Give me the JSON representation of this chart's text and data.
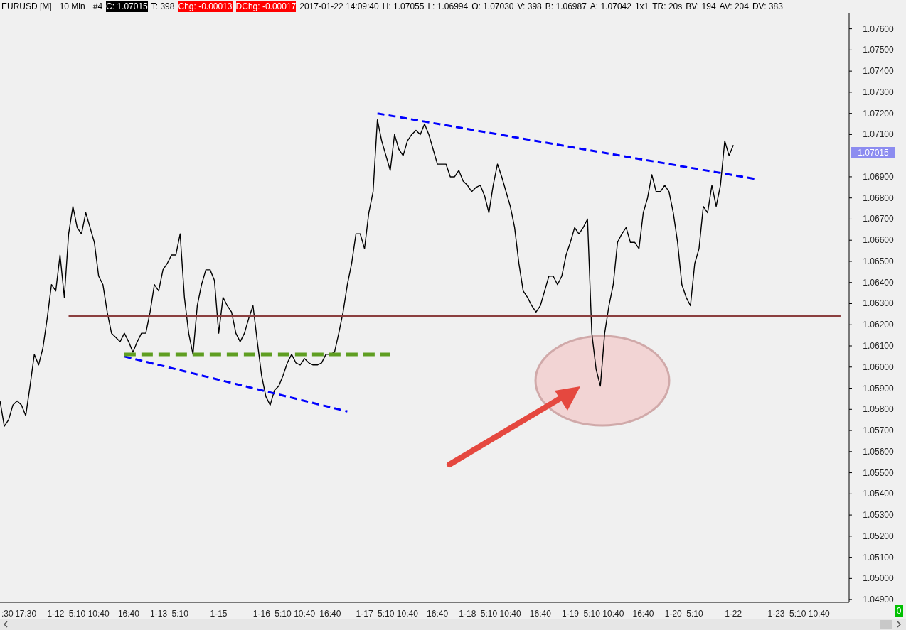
{
  "chart_data": {
    "type": "line",
    "annotations": [
      "EURUSD [M]",
      "10 Min",
      "#4",
      "C: 1.07015",
      "T: 398",
      "Chg: -0.00013",
      "DChg: -0.00017",
      "2017-01-22 14:09:40",
      "H: 1.07055",
      "L: 1.06994",
      "O: 1.07030",
      "V: 398",
      "B: 1.06987",
      "A: 1.07042",
      "1x1",
      "TR: 20s",
      "BV: 194",
      "AV: 204",
      "DV: 383",
      "1.07015",
      "0"
    ],
    "categories": [
      null,
      ":30",
      null,
      null,
      null,
      null,
      "17:30",
      null,
      null,
      null,
      null,
      null,
      null,
      "1-12",
      null,
      null,
      null,
      null,
      "5:10",
      null,
      null,
      null,
      null,
      "10:40",
      null,
      null,
      null,
      null,
      null,
      null,
      "16:40",
      null,
      null,
      null,
      null,
      null,
      null,
      "1-13",
      null,
      null,
      null,
      null,
      "5:10",
      null,
      null,
      null,
      null,
      null,
      null,
      null,
      null,
      "1-15",
      null,
      null,
      null,
      null,
      null,
      null,
      null,
      null,
      null,
      "1-16",
      null,
      null,
      null,
      null,
      "5:10",
      null,
      null,
      null,
      null,
      "10:40",
      null,
      null,
      null,
      null,
      null,
      "16:40",
      null,
      null,
      null,
      null,
      null,
      null,
      null,
      "1-17",
      null,
      null,
      null,
      null,
      "5:10",
      null,
      null,
      null,
      null,
      "10:40",
      null,
      null,
      null,
      null,
      null,
      null,
      "16:40",
      null,
      null,
      null,
      null,
      null,
      null,
      "1-18",
      null,
      null,
      null,
      null,
      "5:10",
      null,
      null,
      null,
      null,
      "10:40",
      null,
      null,
      null,
      null,
      null,
      null,
      "16:40",
      null,
      null,
      null,
      null,
      null,
      null,
      "1-19",
      null,
      null,
      null,
      null,
      "5:10",
      null,
      null,
      null,
      null,
      "10:40",
      null,
      null,
      null,
      null,
      null,
      null,
      "16:40",
      null,
      null,
      null,
      null,
      null,
      null,
      "1-20",
      null,
      null,
      null,
      null,
      "5:10",
      null,
      null,
      null,
      null,
      null,
      null,
      null,
      null,
      "1-22",
      null,
      null,
      null,
      null,
      null,
      null,
      null,
      null,
      null,
      "1-23",
      null,
      null,
      null,
      null,
      "5:10",
      null,
      null,
      null,
      null,
      "10:40",
      null,
      null,
      null,
      null,
      null,
      null,
      null
    ],
    "series": [
      {
        "color": "#000000",
        "values": [
          1.0584,
          1.0572,
          1.0575,
          1.0582,
          1.0584,
          1.0582,
          1.0577,
          1.0591,
          1.0606,
          1.0601,
          1.0609,
          1.0623,
          1.0639,
          1.0636,
          1.0653,
          1.0633,
          1.0663,
          1.0676,
          1.0666,
          1.0663,
          1.0673,
          1.0666,
          1.0659,
          1.0643,
          1.0639,
          1.0626,
          1.0616,
          1.0614,
          1.0612,
          1.0616,
          1.0612,
          1.0607,
          1.0612,
          1.0616,
          1.0616,
          1.0626,
          1.0639,
          1.0636,
          1.0646,
          1.0649,
          1.0653,
          1.0653,
          1.0663,
          1.0633,
          1.0616,
          1.0606,
          1.0629,
          1.0639,
          1.0646,
          1.0646,
          1.0641,
          1.0616,
          1.0633,
          1.0629,
          1.0626,
          1.0616,
          1.0612,
          1.0616,
          1.0623,
          1.0629,
          1.0612,
          1.0596,
          1.0586,
          1.0582,
          1.0589,
          1.0591,
          1.0596,
          1.0602,
          1.0606,
          1.0602,
          1.0601,
          1.0604,
          1.0602,
          1.0601,
          1.0601,
          1.0602,
          1.0606,
          1.0606,
          1.0607,
          1.0616,
          1.0626,
          1.0639,
          1.0649,
          1.0663,
          1.0663,
          1.0656,
          1.0673,
          1.0683,
          1.0717,
          1.0707,
          1.07,
          1.0693,
          1.071,
          1.0703,
          1.07,
          1.0707,
          1.071,
          1.0712,
          1.071,
          1.0715,
          1.071,
          1.0703,
          1.0696,
          1.0696,
          1.0696,
          1.069,
          1.069,
          1.0693,
          1.0688,
          1.0686,
          1.0683,
          1.0685,
          1.0686,
          1.0681,
          1.0673,
          1.0686,
          1.0696,
          1.069,
          1.0683,
          1.0676,
          1.0666,
          1.0649,
          1.0636,
          1.0633,
          1.0629,
          1.0626,
          1.0629,
          1.0636,
          1.0643,
          1.0643,
          1.0639,
          1.0643,
          1.0653,
          1.0659,
          1.0666,
          1.0663,
          1.0666,
          1.067,
          1.0616,
          1.0599,
          1.0591,
          1.0616,
          1.0629,
          1.0639,
          1.0659,
          1.0663,
          1.0666,
          1.0659,
          1.0659,
          1.0656,
          1.0673,
          1.068,
          1.0691,
          1.0683,
          1.0683,
          1.0686,
          1.0683,
          1.0673,
          1.0659,
          1.0639,
          1.0633,
          1.0629,
          1.0649,
          1.0656,
          1.0676,
          1.0673,
          1.0686,
          1.0676,
          1.0686,
          1.0707,
          1.07,
          1.0705,
          null,
          null,
          null,
          null,
          null,
          null,
          null,
          null,
          null,
          null,
          null,
          null,
          null,
          null,
          null,
          null,
          null,
          null,
          null,
          null,
          null,
          null,
          null,
          null,
          null,
          null,
          null
        ]
      },
      {
        "color": "#0000ff",
        "line_style": "dashed",
        "values": [
          null,
          null,
          null,
          null,
          null,
          null,
          null,
          null,
          null,
          null,
          null,
          null,
          null,
          null,
          null,
          null,
          null,
          null,
          null,
          null,
          null,
          null,
          null,
          null,
          null,
          null,
          null,
          null,
          null,
          1.0605,
          null,
          null,
          null,
          null,
          null,
          null,
          null,
          null,
          null,
          null,
          null,
          null,
          null,
          null,
          null,
          null,
          null,
          null,
          null,
          null,
          null,
          null,
          null,
          null,
          null,
          null,
          null,
          null,
          null,
          null,
          null,
          null,
          null,
          null,
          null,
          null,
          null,
          null,
          null,
          null,
          null,
          null,
          null,
          null,
          null,
          null,
          null,
          null,
          null,
          null,
          null,
          1.0579,
          null,
          null,
          null,
          null,
          null,
          null,
          null,
          null,
          null,
          null,
          null,
          null,
          null,
          null,
          null,
          null,
          null,
          null,
          null,
          null,
          null,
          null,
          null,
          null,
          null,
          null,
          null,
          null,
          null,
          null,
          null,
          null,
          null,
          null,
          null,
          null,
          null,
          null,
          null,
          null,
          null,
          null,
          null,
          null,
          null,
          null,
          null,
          null,
          null,
          null,
          null,
          null,
          null,
          null,
          null,
          null,
          null,
          null,
          null,
          null,
          null,
          null,
          null,
          null,
          null,
          null,
          null,
          null,
          null,
          null,
          null,
          null,
          null,
          null,
          null,
          null,
          null,
          null,
          null,
          null,
          null,
          null,
          null,
          null,
          null,
          null,
          null,
          null,
          null,
          null,
          null,
          null,
          null,
          null,
          null,
          null,
          null,
          null,
          null,
          null,
          null,
          null,
          null,
          null,
          null,
          null,
          null,
          null,
          null,
          null,
          null,
          null,
          null,
          null,
          null,
          null,
          null
        ]
      },
      {
        "color": "#0000ff",
        "line_style": "dashed",
        "values": [
          null,
          null,
          null,
          null,
          null,
          null,
          null,
          null,
          null,
          null,
          null,
          null,
          null,
          null,
          null,
          null,
          null,
          null,
          null,
          null,
          null,
          null,
          null,
          null,
          null,
          null,
          null,
          null,
          null,
          null,
          null,
          null,
          null,
          null,
          null,
          null,
          null,
          null,
          null,
          null,
          null,
          null,
          null,
          null,
          null,
          null,
          null,
          null,
          null,
          null,
          null,
          null,
          null,
          null,
          null,
          null,
          null,
          null,
          null,
          null,
          null,
          null,
          null,
          null,
          null,
          null,
          null,
          null,
          null,
          null,
          null,
          null,
          null,
          null,
          null,
          null,
          null,
          null,
          null,
          null,
          null,
          null,
          null,
          null,
          null,
          null,
          null,
          null,
          1.072,
          null,
          null,
          null,
          null,
          null,
          null,
          null,
          null,
          null,
          null,
          null,
          null,
          null,
          null,
          null,
          null,
          null,
          null,
          null,
          null,
          null,
          null,
          null,
          null,
          null,
          null,
          null,
          null,
          null,
          null,
          null,
          null,
          null,
          null,
          null,
          null,
          null,
          null,
          null,
          null,
          null,
          null,
          null,
          null,
          null,
          null,
          null,
          null,
          null,
          null,
          null,
          null,
          null,
          null,
          null,
          null,
          null,
          null,
          null,
          null,
          null,
          null,
          null,
          null,
          null,
          null,
          null,
          null,
          null,
          null,
          null,
          null,
          null,
          null,
          null,
          null,
          null,
          null,
          null,
          null,
          null,
          null,
          null,
          null,
          null,
          null,
          null,
          1.0689,
          null,
          null,
          null,
          null,
          null,
          null,
          null,
          null,
          null,
          null,
          null,
          null,
          null,
          null,
          null,
          null,
          null,
          null,
          null,
          null,
          null,
          null
        ]
      },
      {
        "color": "#5f9e22",
        "line_style": "dashed",
        "values": [
          null,
          null,
          null,
          null,
          null,
          null,
          null,
          null,
          null,
          null,
          null,
          null,
          null,
          null,
          null,
          null,
          null,
          null,
          null,
          null,
          null,
          null,
          null,
          null,
          null,
          null,
          null,
          null,
          null,
          1.0606,
          null,
          null,
          null,
          null,
          null,
          null,
          null,
          null,
          null,
          null,
          null,
          null,
          null,
          null,
          null,
          null,
          null,
          null,
          null,
          null,
          null,
          null,
          null,
          null,
          null,
          null,
          null,
          null,
          null,
          null,
          null,
          null,
          null,
          null,
          null,
          null,
          null,
          null,
          null,
          null,
          null,
          null,
          null,
          null,
          null,
          null,
          null,
          null,
          null,
          null,
          null,
          null,
          null,
          null,
          null,
          null,
          null,
          null,
          null,
          null,
          null,
          1.0606,
          null,
          null,
          null,
          null,
          null,
          null,
          null,
          null,
          null,
          null,
          null,
          null,
          null,
          null,
          null,
          null,
          null,
          null,
          null,
          null,
          null,
          null,
          null,
          null,
          null,
          null,
          null,
          null,
          null,
          null,
          null,
          null,
          null,
          null,
          null,
          null,
          null,
          null,
          null,
          null,
          null,
          null,
          null,
          null,
          null,
          null,
          null,
          null,
          null,
          null,
          null,
          null,
          null,
          null,
          null,
          null,
          null,
          null,
          null,
          null,
          null,
          null,
          null,
          null,
          null,
          null,
          null,
          null,
          null,
          null,
          null,
          null,
          null,
          null,
          null,
          null,
          null,
          null,
          null,
          null,
          null,
          null,
          null,
          null,
          null,
          null,
          null,
          null,
          null,
          null,
          null,
          null,
          null,
          null,
          null,
          null,
          null,
          null,
          null,
          null,
          null,
          null,
          null,
          null,
          null,
          null,
          null
        ]
      },
      {
        "color": "#8b3f3f",
        "line_style": "solid",
        "values": [
          null,
          null,
          null,
          null,
          null,
          null,
          null,
          null,
          null,
          null,
          null,
          null,
          null,
          null,
          null,
          null,
          1.0624,
          null,
          null,
          null,
          null,
          null,
          null,
          null,
          null,
          null,
          null,
          null,
          null,
          null,
          null,
          null,
          null,
          null,
          null,
          null,
          null,
          null,
          null,
          null,
          null,
          null,
          null,
          null,
          null,
          null,
          null,
          null,
          null,
          null,
          null,
          null,
          null,
          null,
          null,
          null,
          null,
          null,
          null,
          null,
          null,
          null,
          null,
          null,
          null,
          null,
          null,
          null,
          null,
          null,
          null,
          null,
          null,
          null,
          null,
          null,
          null,
          null,
          null,
          null,
          null,
          null,
          null,
          null,
          null,
          null,
          null,
          null,
          null,
          null,
          null,
          null,
          null,
          null,
          null,
          null,
          null,
          null,
          null,
          null,
          null,
          null,
          null,
          null,
          null,
          null,
          null,
          null,
          null,
          null,
          null,
          null,
          null,
          null,
          null,
          null,
          null,
          null,
          null,
          null,
          null,
          null,
          null,
          null,
          null,
          null,
          null,
          null,
          null,
          null,
          null,
          null,
          null,
          null,
          null,
          null,
          null,
          null,
          null,
          null,
          null,
          null,
          null,
          null,
          null,
          null,
          null,
          null,
          null,
          null,
          null,
          null,
          null,
          null,
          null,
          null,
          null,
          null,
          null,
          null,
          null,
          null,
          null,
          null,
          null,
          null,
          null,
          null,
          null,
          null,
          null,
          null,
          null,
          null,
          null,
          null,
          null,
          null,
          null,
          null,
          null,
          null,
          null,
          null,
          null,
          null,
          null,
          null,
          null,
          null,
          null,
          null,
          null,
          null,
          null,
          null,
          1.0624,
          null,
          null
        ]
      }
    ],
    "ylim": [
      1.04887,
      1.07676
    ],
    "yticks": [
      {
        "value": 1.049,
        "label": "1.04900"
      },
      {
        "value": 1.05,
        "label": "1.05000"
      },
      {
        "value": 1.051,
        "label": "1.05100"
      },
      {
        "value": 1.052,
        "label": "1.05200"
      },
      {
        "value": 1.053,
        "label": "1.05300"
      },
      {
        "value": 1.054,
        "label": "1.05400"
      },
      {
        "value": 1.055,
        "label": "1.05500"
      },
      {
        "value": 1.056,
        "label": "1.05600"
      },
      {
        "value": 1.057,
        "label": "1.05700"
      },
      {
        "value": 1.058,
        "label": "1.05800"
      },
      {
        "value": 1.059,
        "label": "1.05900"
      },
      {
        "value": 1.06,
        "label": "1.06000"
      },
      {
        "value": 1.061,
        "label": "1.06100"
      },
      {
        "value": 1.062,
        "label": "1.06200"
      },
      {
        "value": 1.063,
        "label": "1.06300"
      },
      {
        "value": 1.064,
        "label": "1.06400"
      },
      {
        "value": 1.065,
        "label": "1.06500"
      },
      {
        "value": 1.066,
        "label": "1.06600"
      },
      {
        "value": 1.067,
        "label": "1.06700"
      },
      {
        "value": 1.068,
        "label": "1.06800"
      },
      {
        "value": 1.069,
        "label": "1.06900"
      },
      {
        "value": 1.071,
        "label": "1.07100"
      },
      {
        "value": 1.072,
        "label": "1.07200"
      },
      {
        "value": 1.073,
        "label": "1.07300"
      },
      {
        "value": 1.074,
        "label": "1.07400"
      },
      {
        "value": 1.075,
        "label": "1.07500"
      },
      {
        "value": 1.076,
        "label": "1.07600"
      }
    ],
    "legend": false,
    "marker": "none",
    "line_style": "solid"
  }
}
